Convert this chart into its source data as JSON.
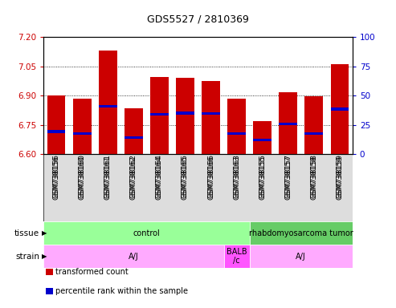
{
  "title": "GDS5527 / 2810369",
  "samples": [
    "GSM738156",
    "GSM738160",
    "GSM738161",
    "GSM738162",
    "GSM738164",
    "GSM738165",
    "GSM738166",
    "GSM738163",
    "GSM738155",
    "GSM738157",
    "GSM738158",
    "GSM738159"
  ],
  "bar_tops": [
    6.9,
    6.885,
    7.13,
    6.835,
    6.995,
    6.99,
    6.975,
    6.885,
    6.77,
    6.915,
    6.895,
    7.06
  ],
  "bar_bottoms": [
    6.6,
    6.6,
    6.6,
    6.6,
    6.6,
    6.6,
    6.6,
    6.6,
    6.6,
    6.6,
    6.6,
    6.6
  ],
  "percentile_values": [
    6.715,
    6.705,
    6.845,
    6.683,
    6.805,
    6.81,
    6.808,
    6.705,
    6.672,
    6.755,
    6.705,
    6.83
  ],
  "ylim": [
    6.6,
    7.2
  ],
  "yticks": [
    6.6,
    6.75,
    6.9,
    7.05,
    7.2
  ],
  "right_yticks": [
    0,
    25,
    50,
    75,
    100
  ],
  "right_ylim": [
    0,
    100
  ],
  "bar_color": "#cc0000",
  "percentile_color": "#0000cc",
  "grid_color": "#000000",
  "title_color": "#000000",
  "left_tick_color": "#cc0000",
  "right_tick_color": "#0000cc",
  "tissue_groups": [
    {
      "label": "control",
      "start": 0,
      "end": 8,
      "color": "#99ff99"
    },
    {
      "label": "rhabdomyosarcoma tumor",
      "start": 8,
      "end": 12,
      "color": "#66cc66"
    }
  ],
  "strain_groups": [
    {
      "label": "A/J",
      "start": 0,
      "end": 7,
      "color": "#ffaaff"
    },
    {
      "label": "BALB\n/c",
      "start": 7,
      "end": 8,
      "color": "#ff55ff"
    },
    {
      "label": "A/J",
      "start": 8,
      "end": 12,
      "color": "#ffaaff"
    }
  ],
  "legend_items": [
    {
      "color": "#cc0000",
      "label": "transformed count"
    },
    {
      "color": "#0000cc",
      "label": "percentile rank within the sample"
    }
  ],
  "bar_width": 0.7,
  "figsize": [
    4.93,
    3.84
  ],
  "dpi": 100
}
